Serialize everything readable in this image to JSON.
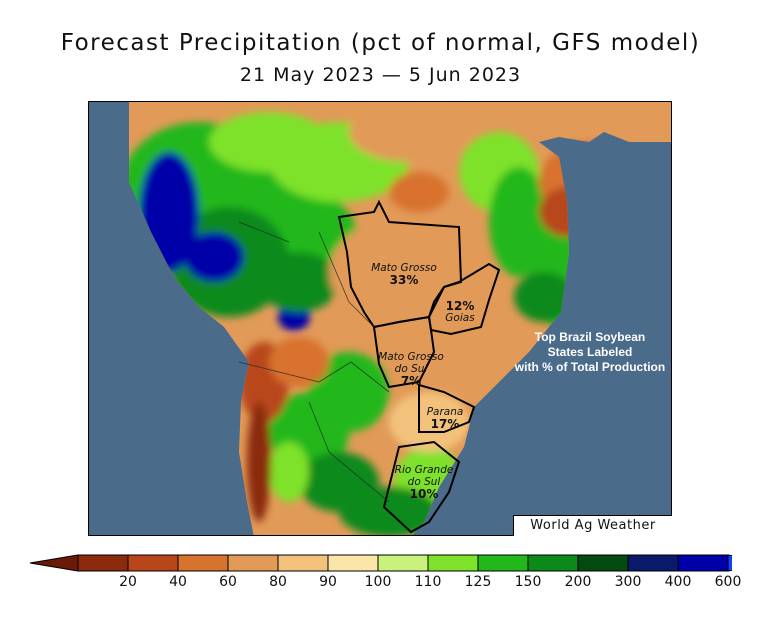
{
  "title": "Forecast Precipitation (pct of normal, GFS model)",
  "subtitle": "21 May 2023 — 5 Jun 2023",
  "map": {
    "ocean_color": "#4a6b8a",
    "states": [
      {
        "name": "Mato Grosso",
        "pct": "33%"
      },
      {
        "name": "Goias",
        "pct": "12%"
      },
      {
        "name": "Mato Grosso do Sul",
        "name_line1": "Mato Grosso",
        "name_line2": "do Sul",
        "pct": "7%"
      },
      {
        "name": "Parana",
        "pct": "17%"
      },
      {
        "name": "Rio Grande do Sul",
        "name_line1": "Rio Grande",
        "name_line2": "do Sul",
        "pct": "10%"
      }
    ],
    "info_lines": [
      "Top Brazil Soybean",
      "States Labeled",
      "with % of Total Production"
    ],
    "credit": "World Ag Weather"
  },
  "legend": {
    "labels": [
      "20",
      "40",
      "60",
      "80",
      "90",
      "100",
      "110",
      "125",
      "150",
      "200",
      "300",
      "400",
      "600"
    ],
    "colors": [
      "#8b2a0c",
      "#b8461a",
      "#d8722f",
      "#e29a58",
      "#f2c27c",
      "#fbe6a8",
      "#c8f27c",
      "#7ee22a",
      "#22b81c",
      "#0b8a1a",
      "#054a10",
      "#0a1a6a",
      "#0000a8"
    ],
    "under_color": "#6b1a08",
    "over_color": "#1040ff"
  }
}
